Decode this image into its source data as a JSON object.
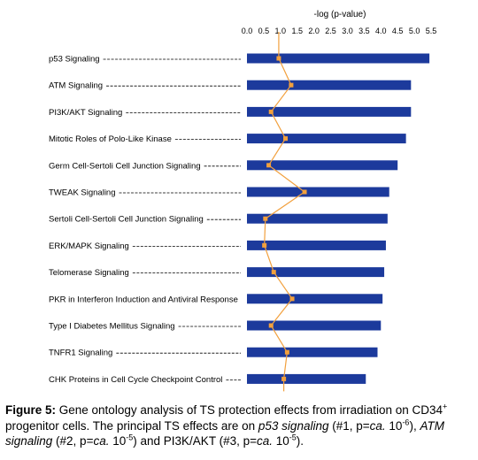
{
  "chart_data": {
    "type": "bar",
    "orientation": "horizontal",
    "title": "-log (p-value)",
    "xlim": [
      0,
      5.5
    ],
    "x_ticks": [
      "0.0",
      "0.5",
      "1.0",
      "1.5",
      "2.0",
      "2.5",
      "3.0",
      "3.5",
      "4.0",
      "4.5",
      "5.0",
      "5.5"
    ],
    "grid": false,
    "bar_color": "#1c3a9c",
    "ratio_line_color": "#f2a03d",
    "categories": [
      "p53 Signaling",
      "ATM Signaling",
      "PI3K/AKT Signaling",
      "Mitotic Roles of Polo-Like Kinase",
      "Germ Cell-Sertoli Cell Junction Signaling",
      "TWEAK Signaling",
      "Sertoli Cell-Sertoli Cell Junction Signaling",
      "ERK/MAPK Signaling",
      "Telomerase Signaling",
      "PKR in Interferon Induction and Antiviral Response",
      "Type I Diabetes Mellitus Signaling",
      "TNFR1 Signaling",
      "CHK Proteins in Cell Cycle Checkpoint Control"
    ],
    "series": [
      {
        "values": [
          5.45,
          4.9,
          4.9,
          4.75,
          4.5,
          4.25,
          4.2,
          4.15,
          4.1,
          4.05,
          4.0,
          3.9,
          3.55
        ]
      },
      {
        "values": [
          0.95,
          1.32,
          0.72,
          1.15,
          0.65,
          1.72,
          0.55,
          0.52,
          0.8,
          1.35,
          0.72,
          1.2,
          1.1
        ]
      }
    ]
  },
  "caption": {
    "label": "Figure 5:",
    "part1": " Gene ontology analysis of TS protection effects from irradiation on CD34",
    "sup1": "+",
    "part2": " progenitor cells. The principal TS effects are on ",
    "term1": "p53 signaling",
    "part3": " (#1, p=",
    "ca1": "ca.",
    "part4": " 10",
    "sup2": "-6",
    "part5": "), ",
    "term2": "ATM signaling",
    "part6": " (#2, p=",
    "ca2": "ca.",
    "part7": " 10",
    "sup3": "-5",
    "part8": ") and PI3K/AKT (#3, p=",
    "ca3": "ca.",
    "part9": " 10",
    "sup4": "-5",
    "part10": ")."
  }
}
